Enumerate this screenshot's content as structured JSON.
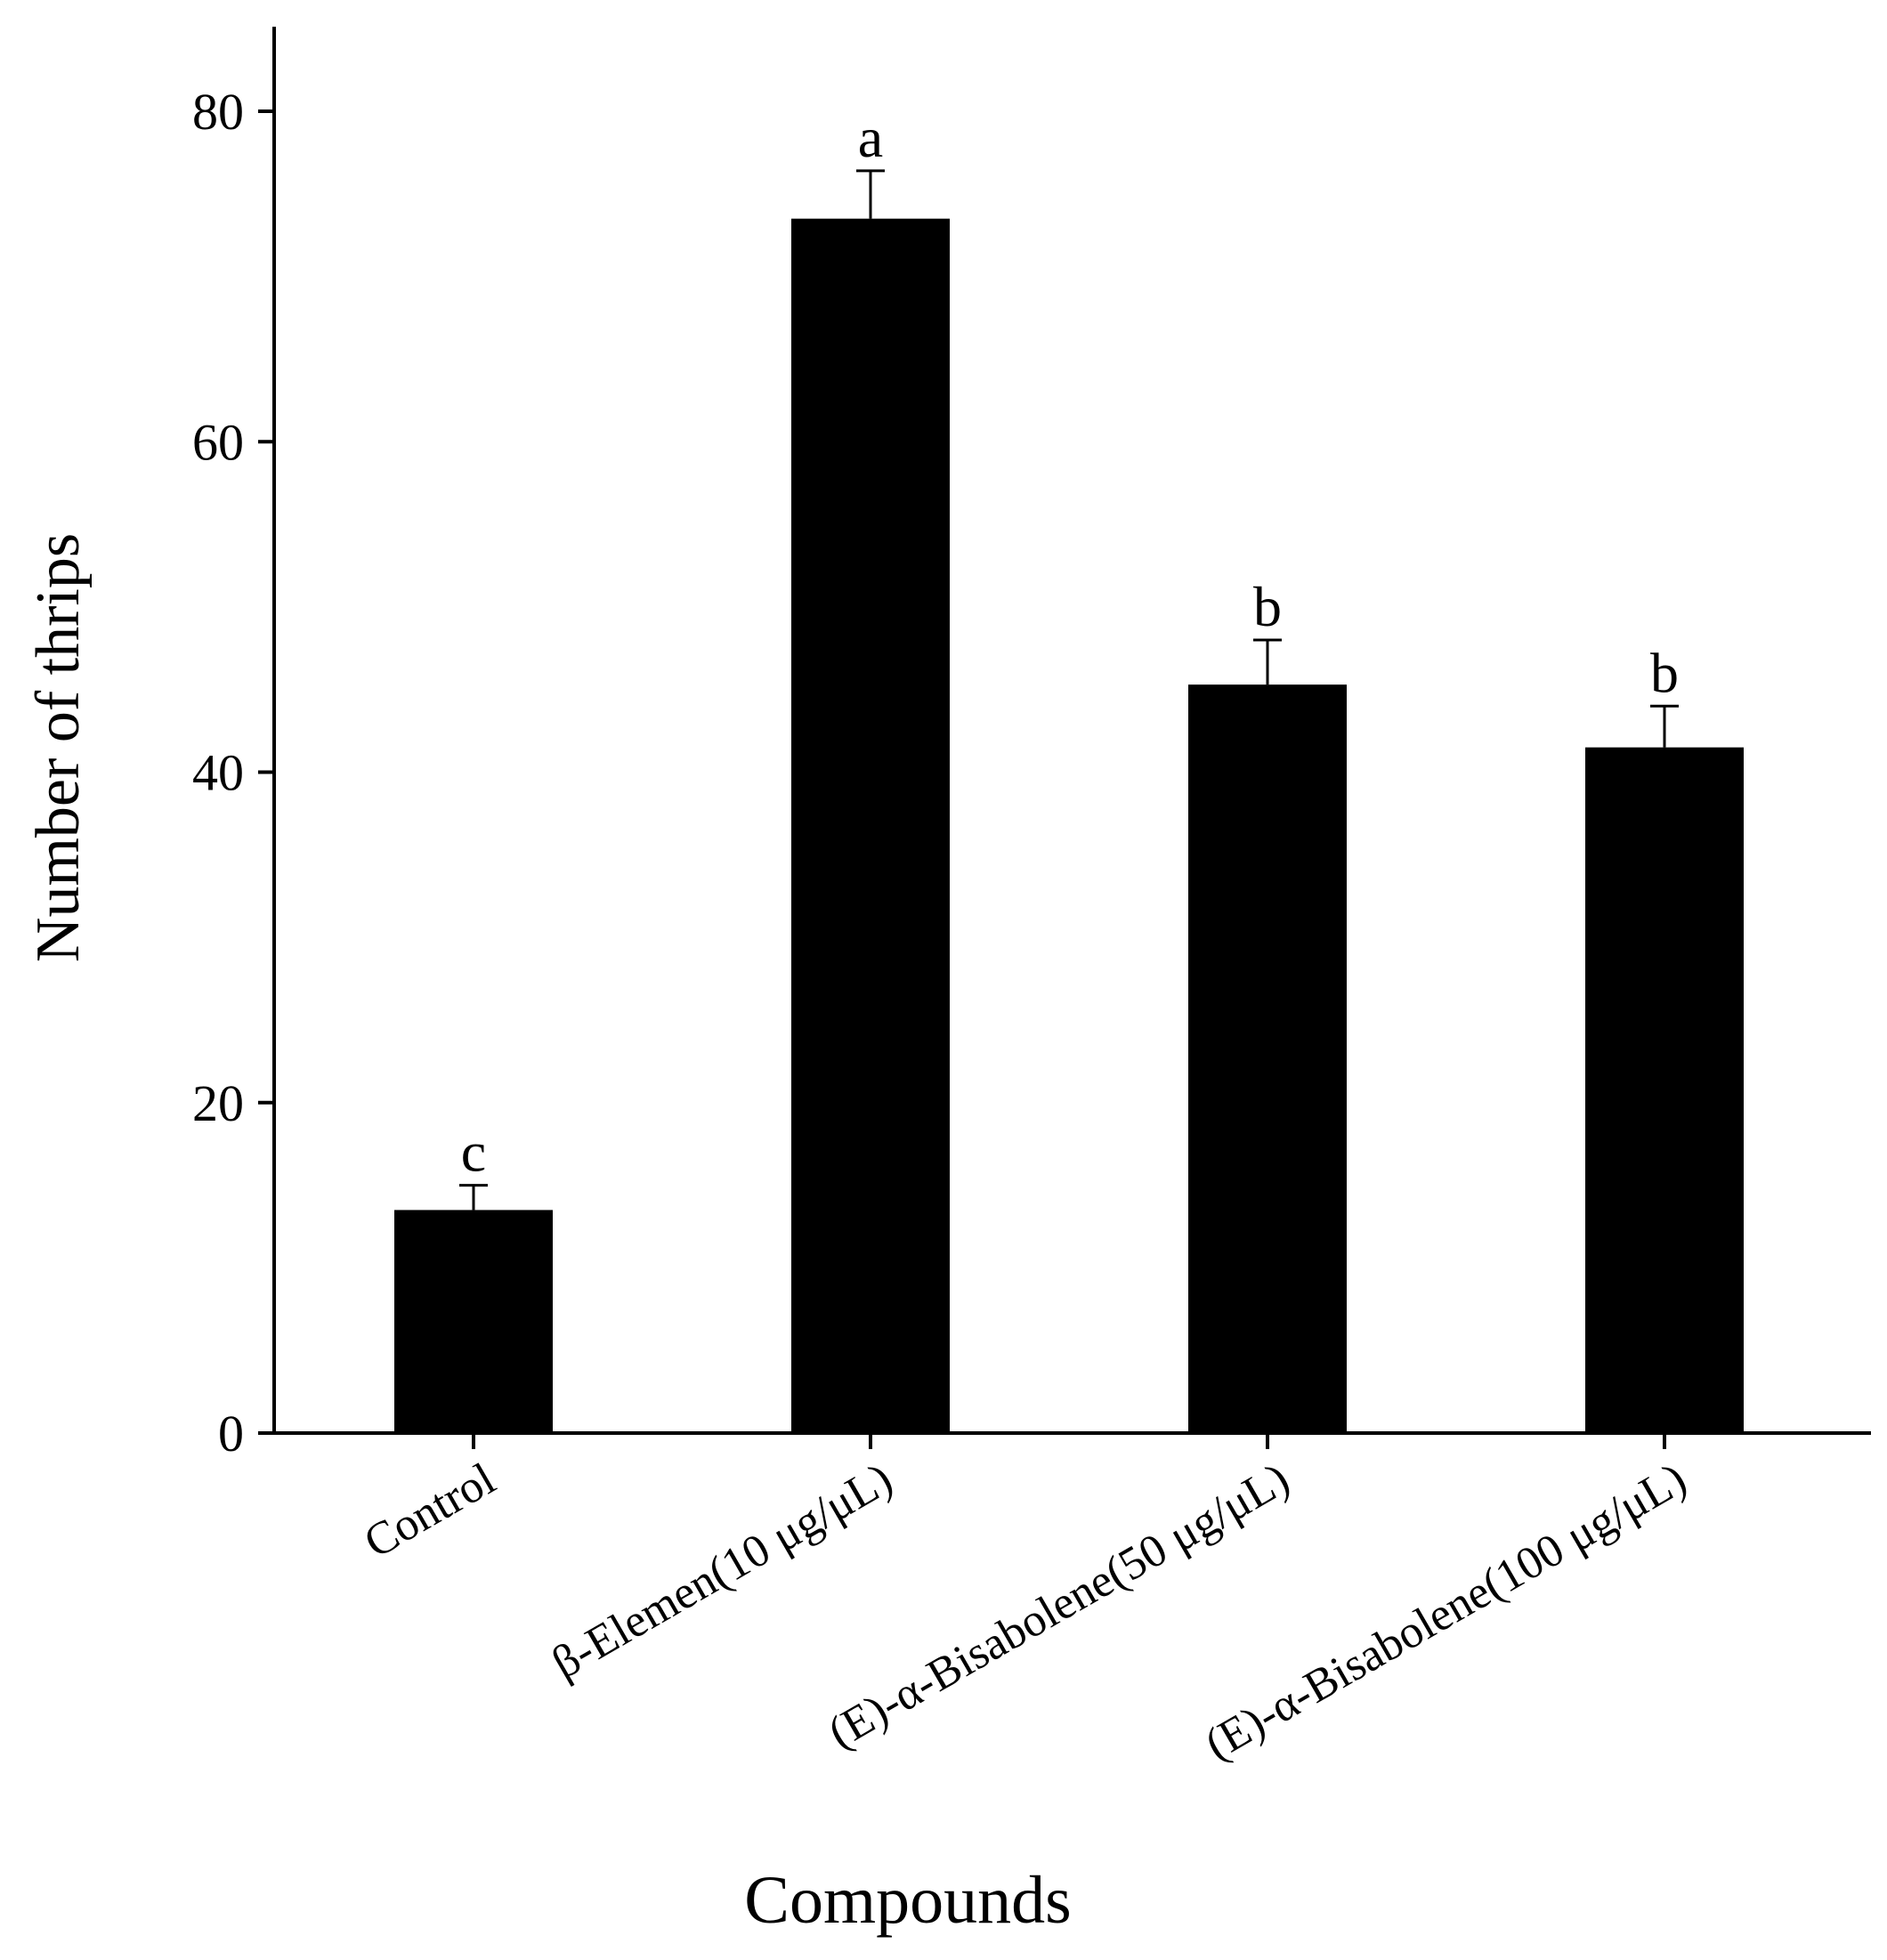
{
  "chart_data": {
    "type": "bar",
    "title": "",
    "xlabel": "Compounds",
    "ylabel": "Number of thrips",
    "ylim": [
      0,
      85
    ],
    "yticks": [
      0,
      20,
      40,
      60,
      80
    ],
    "ytick_labels": [
      "0",
      "20",
      "40",
      "60",
      "80"
    ],
    "categories": [
      "Control",
      "β-Elemen(10 μg/μL)",
      "(E)-α-Bisabolene(50 μg/μL)",
      "(E)-α-Bisabolene(100 μg/μL)"
    ],
    "values": [
      13.5,
      73.5,
      45.3,
      41.5
    ],
    "errors": [
      1.5,
      2.9,
      2.7,
      2.5
    ],
    "significance_letters": [
      "c",
      "a",
      "b",
      "b"
    ],
    "bar_color": "#000000",
    "grid": false
  }
}
